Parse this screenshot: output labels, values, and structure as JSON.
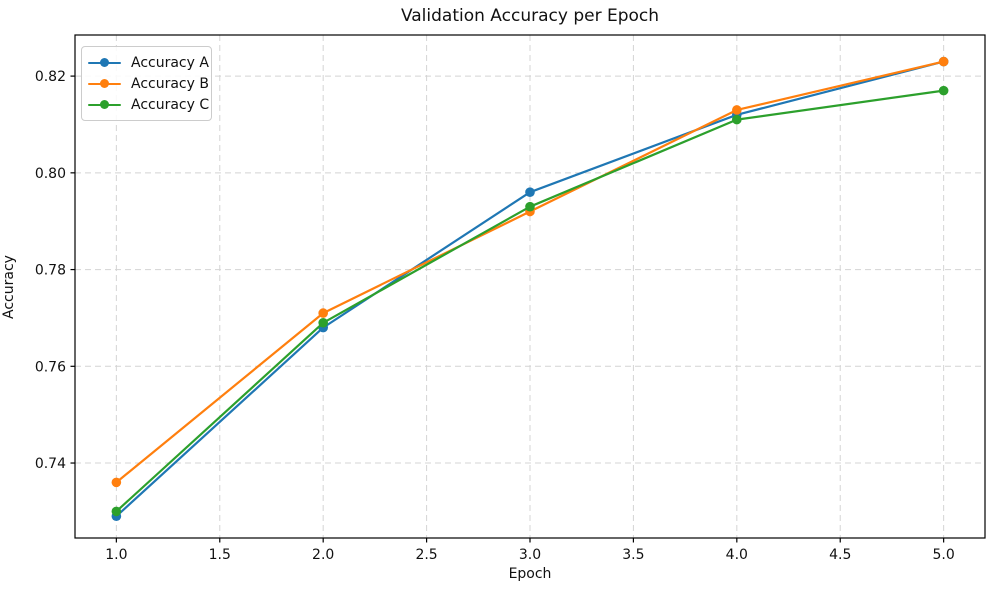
{
  "figure": {
    "background": "#ffffff",
    "text_color": "#111111",
    "spine_color": "#000000",
    "grid_color": "#d4d4d4"
  },
  "chart_data": {
    "type": "line",
    "title": "Validation Accuracy per Epoch",
    "xlabel": "Epoch",
    "ylabel": "Accuracy",
    "x": [
      1,
      2,
      3,
      4,
      5
    ],
    "series": [
      {
        "name": "Accuracy A",
        "color": "#1f77b4",
        "values": [
          0.729,
          0.768,
          0.796,
          0.812,
          0.823
        ]
      },
      {
        "name": "Accuracy B",
        "color": "#ff7f0e",
        "values": [
          0.736,
          0.771,
          0.792,
          0.813,
          0.823
        ]
      },
      {
        "name": "Accuracy C",
        "color": "#2ca02c",
        "values": [
          0.73,
          0.769,
          0.793,
          0.811,
          0.817
        ]
      }
    ],
    "xlim": [
      0.8,
      5.2
    ],
    "ylim": [
      0.7245,
      0.8285
    ],
    "xticks": {
      "values": [
        1.0,
        1.5,
        2.0,
        2.5,
        3.0,
        3.5,
        4.0,
        4.5,
        5.0
      ],
      "labels": [
        "1.0",
        "1.5",
        "2.0",
        "2.5",
        "3.0",
        "3.5",
        "4.0",
        "4.5",
        "5.0"
      ]
    },
    "yticks": {
      "values": [
        0.74,
        0.76,
        0.78,
        0.8,
        0.82
      ],
      "labels": [
        "0.74",
        "0.76",
        "0.78",
        "0.80",
        "0.82"
      ]
    },
    "grid": true,
    "grid_style": "dashed",
    "legend_position": "upper-left",
    "marker": "circle",
    "line_width": 2.2,
    "marker_radius": 4.8
  }
}
